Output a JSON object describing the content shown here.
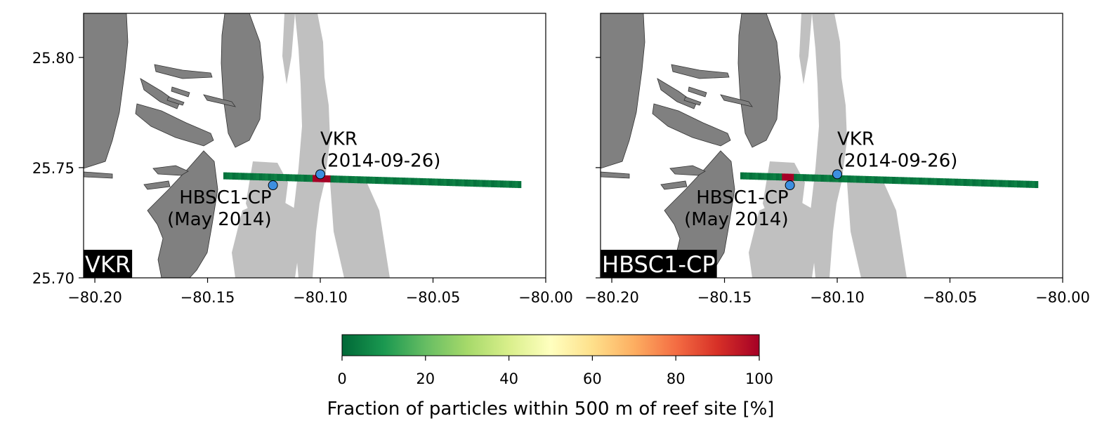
{
  "chart_data": [
    {
      "type": "heatmap",
      "panel_label": "VKR",
      "xlim": [
        -80.205,
        -80.0
      ],
      "ylim": [
        25.7,
        25.82
      ],
      "x_ticks": [
        -80.2,
        -80.15,
        -80.1,
        -80.05,
        -80.0
      ],
      "x_tick_labels": [
        "−80.20",
        "−80.15",
        "−80.10",
        "−80.05",
        "−80.00"
      ],
      "y_ticks": [
        25.7,
        25.75,
        25.8
      ],
      "y_tick_labels": [
        "25.70",
        "25.75",
        "25.80"
      ],
      "transect": {
        "lon_start": -80.143,
        "lat_start": 25.7463,
        "lon_end": -80.011,
        "lat_end": 25.7423,
        "segments": 100
      },
      "hot_spot": {
        "lon_from": -80.104,
        "lon_to": -80.096,
        "value": 100
      },
      "background_value": 2,
      "sites": [
        {
          "name": "VKR",
          "label_lines": [
            "VKR",
            "(2014-09-26)"
          ],
          "lon": -80.1,
          "lat": 25.747,
          "label_anchor": "start"
        },
        {
          "name": "HBSC1-CP",
          "label_lines": [
            "HBSC1-CP",
            "(May 2014)"
          ],
          "lon": -80.121,
          "lat": 25.742,
          "label_anchor": "end"
        }
      ]
    },
    {
      "type": "heatmap",
      "panel_label": "HBSC1-CP",
      "xlim": [
        -80.205,
        -80.0
      ],
      "ylim": [
        25.7,
        25.82
      ],
      "x_ticks": [
        -80.2,
        -80.15,
        -80.1,
        -80.05,
        -80.0
      ],
      "x_tick_labels": [
        "−80.20",
        "−80.15",
        "−80.10",
        "−80.05",
        "−80.00"
      ],
      "y_ticks": [
        25.7,
        25.75,
        25.8
      ],
      "y_tick_labels": [
        "",
        "",
        ""
      ],
      "transect": {
        "lon_start": -80.143,
        "lat_start": 25.7463,
        "lon_end": -80.011,
        "lat_end": 25.7423,
        "segments": 100
      },
      "hot_spot": {
        "lon_from": -80.124,
        "lon_to": -80.119,
        "value": 100
      },
      "background_value": 2,
      "sites": [
        {
          "name": "VKR",
          "label_lines": [
            "VKR",
            "(2014-09-26)"
          ],
          "lon": -80.1,
          "lat": 25.747,
          "label_anchor": "start"
        },
        {
          "name": "HBSC1-CP",
          "label_lines": [
            "HBSC1-CP",
            "(May 2014)"
          ],
          "lon": -80.121,
          "lat": 25.742,
          "label_anchor": "end"
        }
      ]
    }
  ],
  "colorbar": {
    "label": "Fraction of particles within 500 m of reef site [%]",
    "min": 0,
    "max": 100,
    "ticks": [
      0,
      20,
      40,
      60,
      80,
      100
    ],
    "tick_labels": [
      "0",
      "20",
      "40",
      "60",
      "80",
      "100"
    ],
    "colormap": "RdYlGn_r",
    "colors": [
      "#006837",
      "#1a9850",
      "#66bd63",
      "#a6d96a",
      "#d9ef8b",
      "#ffffbf",
      "#fee08b",
      "#fdae61",
      "#f46d43",
      "#d73027",
      "#a50026"
    ]
  },
  "colors": {
    "land": "#808080",
    "land_edge": "#333333",
    "reef": "#c0c0c0",
    "site_marker": "#3d8fe0"
  }
}
